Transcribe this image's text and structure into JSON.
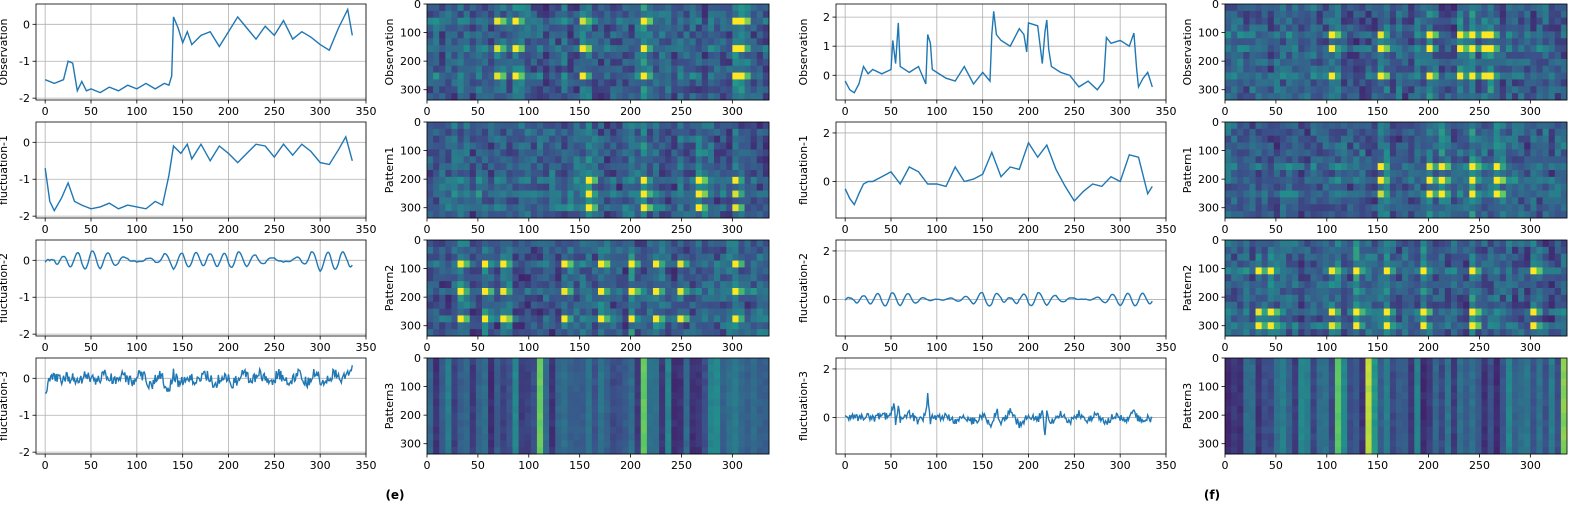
{
  "panel_labels": [
    "(e)",
    "(f)"
  ],
  "colors": {
    "line": "#1f77b4",
    "grid": "#b0b0b0",
    "axis": "#000000",
    "colormap": "viridis"
  },
  "chart_data": [
    {
      "type": "line",
      "ylabel": "Observation",
      "xlim": [
        -10,
        350
      ],
      "ylim": [
        -2.05,
        0.55
      ],
      "xticks": [
        0,
        50,
        100,
        150,
        200,
        250,
        300,
        350
      ],
      "yticks": [
        -2,
        -1,
        0
      ],
      "x": [
        0,
        10,
        20,
        25,
        30,
        35,
        40,
        45,
        50,
        60,
        70,
        80,
        90,
        100,
        110,
        120,
        130,
        135,
        138,
        140,
        145,
        150,
        155,
        160,
        170,
        180,
        190,
        200,
        210,
        220,
        230,
        240,
        250,
        260,
        270,
        280,
        290,
        300,
        310,
        320,
        330,
        335
      ],
      "y": [
        -1.5,
        -1.6,
        -1.5,
        -1.0,
        -1.05,
        -1.8,
        -1.55,
        -1.8,
        -1.75,
        -1.85,
        -1.7,
        -1.8,
        -1.65,
        -1.75,
        -1.6,
        -1.75,
        -1.6,
        -1.65,
        -1.4,
        0.2,
        -0.1,
        -0.5,
        -0.2,
        -0.55,
        -0.3,
        -0.2,
        -0.6,
        -0.2,
        0.2,
        -0.1,
        -0.4,
        -0.05,
        -0.3,
        0.1,
        -0.4,
        -0.2,
        -0.35,
        -0.55,
        -0.7,
        -0.1,
        0.4,
        -0.3
      ]
    },
    {
      "type": "heatmap",
      "ylabel": "Observation",
      "xlim": [
        0,
        336
      ],
      "ylim": [
        336,
        0
      ],
      "xticks": [
        0,
        50,
        100,
        150,
        200,
        250,
        300
      ],
      "yticks": [
        0,
        100,
        200,
        300
      ],
      "bright_columns": [
        70,
        85,
        155,
        215,
        300,
        310
      ],
      "bright_rows": [
        60,
        150,
        240
      ]
    },
    {
      "type": "line",
      "ylabel": "fluctuation-1",
      "xlim": [
        -10,
        350
      ],
      "ylim": [
        -2.05,
        0.55
      ],
      "xticks": [
        0,
        50,
        100,
        150,
        200,
        250,
        300,
        350
      ],
      "yticks": [
        -2,
        -1,
        0
      ],
      "x": [
        0,
        5,
        10,
        18,
        25,
        32,
        40,
        50,
        60,
        70,
        80,
        90,
        100,
        110,
        120,
        128,
        135,
        140,
        148,
        155,
        160,
        170,
        180,
        190,
        200,
        210,
        220,
        230,
        240,
        250,
        260,
        270,
        280,
        290,
        300,
        310,
        320,
        328,
        335
      ],
      "y": [
        -0.7,
        -1.6,
        -1.85,
        -1.5,
        -1.1,
        -1.6,
        -1.7,
        -1.8,
        -1.75,
        -1.65,
        -1.8,
        -1.7,
        -1.75,
        -1.8,
        -1.6,
        -1.7,
        -0.9,
        -0.1,
        -0.3,
        -0.05,
        -0.45,
        -0.05,
        -0.5,
        -0.1,
        -0.3,
        -0.55,
        -0.3,
        -0.05,
        -0.1,
        -0.4,
        -0.05,
        -0.35,
        -0.05,
        -0.25,
        -0.55,
        -0.6,
        -0.2,
        0.15,
        -0.5
      ]
    },
    {
      "type": "heatmap",
      "ylabel": "Pattern1",
      "xlim": [
        0,
        336
      ],
      "ylim": [
        336,
        0
      ],
      "xticks": [
        0,
        50,
        100,
        150,
        200,
        250,
        300
      ],
      "yticks": [
        0,
        100,
        200,
        300
      ],
      "bright_columns": [
        160,
        210,
        265,
        300
      ],
      "bright_rows": [
        200,
        260,
        300
      ]
    },
    {
      "type": "line",
      "ylabel": "fluctuation-2",
      "xlim": [
        -10,
        350
      ],
      "ylim": [
        -2.05,
        0.55
      ],
      "xticks": [
        0,
        50,
        100,
        150,
        200,
        250,
        300,
        350
      ],
      "yticks": [
        -2,
        -1,
        0
      ],
      "pattern": {
        "kind": "oscillation",
        "center": 0.0,
        "amplitude": 0.22,
        "period": 16
      },
      "x": [
        0,
        5,
        10,
        20,
        30,
        40,
        50,
        60,
        70,
        80,
        90,
        100,
        110,
        120,
        130,
        140,
        150,
        160,
        170,
        180,
        190,
        200,
        210,
        220,
        230,
        240,
        250,
        260,
        270,
        280,
        290,
        300,
        310,
        320,
        330,
        335
      ],
      "y": [
        -0.1,
        -0.3,
        0.25,
        -0.2,
        0.15,
        -0.15,
        0.15,
        -0.1,
        0.15,
        -0.15,
        0.2,
        -0.2,
        0.15,
        -0.1,
        0.25,
        -0.25,
        0.15,
        -0.1,
        0.2,
        -0.1,
        0.15,
        -0.15,
        0.2,
        -0.1,
        0.15,
        -0.15,
        0.2,
        -0.2,
        0.15,
        -0.1,
        0.25,
        -0.25,
        0.1,
        -0.15,
        0.25,
        -0.1
      ]
    },
    {
      "type": "heatmap",
      "ylabel": "Pattern2",
      "xlim": [
        0,
        336
      ],
      "ylim": [
        336,
        0
      ],
      "xticks": [
        0,
        50,
        100,
        150,
        200,
        250,
        300
      ],
      "yticks": [
        0,
        100,
        200,
        300
      ],
      "bright_columns": [
        35,
        55,
        75,
        135,
        170,
        200,
        225,
        250,
        300
      ],
      "bright_rows": [
        80,
        170,
        270
      ]
    },
    {
      "type": "line",
      "ylabel": "fluctuation-3",
      "xlim": [
        -10,
        350
      ],
      "ylim": [
        -2.05,
        0.55
      ],
      "xticks": [
        0,
        50,
        100,
        150,
        200,
        250,
        300,
        350
      ],
      "yticks": [
        -2,
        -1,
        0
      ],
      "pattern": {
        "kind": "noise",
        "center": 0.0,
        "amplitude": 0.2
      },
      "x": [
        0,
        3,
        8,
        15,
        25,
        35,
        45,
        55,
        65,
        75,
        85,
        95,
        105,
        115,
        125,
        135,
        140,
        145,
        155,
        165,
        175,
        185,
        195,
        205,
        215,
        225,
        235,
        245,
        255,
        265,
        275,
        285,
        295,
        305,
        315,
        325,
        330,
        335
      ],
      "y": [
        -0.65,
        -0.3,
        0.1,
        -0.05,
        0.05,
        -0.1,
        0.1,
        -0.15,
        0.15,
        -0.1,
        0.1,
        -0.2,
        0.2,
        -0.3,
        0.1,
        -0.45,
        0.2,
        -0.2,
        0.1,
        -0.2,
        0.2,
        -0.25,
        0.15,
        -0.3,
        0.25,
        -0.15,
        0.2,
        -0.25,
        0.2,
        -0.3,
        0.2,
        -0.2,
        0.25,
        -0.3,
        0.2,
        -0.1,
        0.3,
        0.35
      ]
    },
    {
      "type": "heatmap",
      "ylabel": "Pattern3",
      "xlim": [
        0,
        336
      ],
      "ylim": [
        336,
        0
      ],
      "xticks": [
        0,
        50,
        100,
        150,
        200,
        250,
        300
      ],
      "yticks": [
        0,
        100,
        200,
        300
      ],
      "orientation": "columns",
      "bright_columns": [
        108,
        112,
        212,
        215
      ]
    },
    {
      "type": "line",
      "ylabel": "Observation",
      "xlim": [
        -10,
        350
      ],
      "ylim": [
        -0.85,
        2.45
      ],
      "xticks": [
        0,
        50,
        100,
        150,
        200,
        250,
        300,
        350
      ],
      "yticks": [
        0,
        1,
        2
      ],
      "x": [
        0,
        5,
        10,
        15,
        20,
        25,
        30,
        40,
        50,
        52,
        55,
        58,
        60,
        70,
        80,
        88,
        90,
        93,
        95,
        100,
        110,
        120,
        130,
        140,
        150,
        158,
        160,
        162,
        165,
        170,
        180,
        190,
        195,
        198,
        200,
        210,
        215,
        218,
        220,
        222,
        225,
        235,
        245,
        255,
        265,
        275,
        282,
        285,
        290,
        300,
        310,
        315,
        318,
        320,
        325,
        330,
        335
      ],
      "y": [
        -0.2,
        -0.5,
        -0.6,
        -0.3,
        0.3,
        0.05,
        0.2,
        0.05,
        0.2,
        1.2,
        0.4,
        1.8,
        0.3,
        0.1,
        0.3,
        -0.3,
        1.4,
        1.1,
        0.2,
        0.1,
        -0.1,
        -0.2,
        0.3,
        -0.3,
        0.1,
        -0.2,
        1.4,
        2.2,
        1.4,
        1.2,
        1.0,
        1.6,
        1.4,
        0.8,
        1.8,
        1.7,
        0.4,
        1.5,
        1.9,
        0.9,
        0.3,
        0.1,
        0.0,
        -0.4,
        -0.2,
        -0.5,
        -0.2,
        1.3,
        1.1,
        1.2,
        1.0,
        1.45,
        0.2,
        -0.4,
        -0.1,
        0.1,
        -0.4
      ]
    },
    {
      "type": "heatmap",
      "ylabel": "Observation",
      "xlim": [
        0,
        336
      ],
      "ylim": [
        336,
        0
      ],
      "xticks": [
        0,
        50,
        100,
        150,
        200,
        250,
        300
      ],
      "yticks": [
        0,
        100,
        200,
        300
      ],
      "bright_columns": [
        105,
        155,
        200,
        230,
        245,
        255,
        260
      ],
      "bright_rows": [
        100,
        160,
        250
      ]
    },
    {
      "type": "line",
      "ylabel": "fluctuation-1",
      "xlim": [
        -10,
        350
      ],
      "ylim": [
        -1.5,
        2.45
      ],
      "xticks": [
        0,
        50,
        100,
        150,
        200,
        250,
        300,
        350
      ],
      "yticks": [
        0,
        2
      ],
      "x": [
        0,
        5,
        10,
        15,
        20,
        25,
        30,
        40,
        50,
        60,
        70,
        80,
        90,
        100,
        110,
        120,
        130,
        140,
        150,
        160,
        170,
        180,
        190,
        200,
        210,
        220,
        230,
        240,
        250,
        260,
        270,
        280,
        290,
        300,
        310,
        320,
        330,
        335
      ],
      "y": [
        -0.3,
        -0.7,
        -0.95,
        -0.5,
        -0.1,
        0.0,
        0.0,
        0.2,
        0.4,
        -0.1,
        0.6,
        0.4,
        -0.1,
        -0.1,
        -0.2,
        0.6,
        0.0,
        0.1,
        0.3,
        1.2,
        0.2,
        0.6,
        0.5,
        1.6,
        1.0,
        1.5,
        0.5,
        -0.2,
        -0.8,
        -0.4,
        -0.1,
        -0.2,
        0.2,
        0.0,
        1.1,
        1.0,
        -0.5,
        -0.2
      ]
    },
    {
      "type": "heatmap",
      "ylabel": "Pattern1",
      "xlim": [
        0,
        336
      ],
      "ylim": [
        336,
        0
      ],
      "xticks": [
        0,
        50,
        100,
        150,
        200,
        250,
        300
      ],
      "yticks": [
        0,
        100,
        200,
        300
      ],
      "bright_columns": [
        150,
        200,
        210,
        240,
        265
      ],
      "bright_rows": [
        160,
        210,
        260
      ]
    },
    {
      "type": "line",
      "ylabel": "fluctuation-2",
      "xlim": [
        -10,
        350
      ],
      "ylim": [
        -1.5,
        2.45
      ],
      "xticks": [
        0,
        50,
        100,
        150,
        200,
        250,
        300,
        350
      ],
      "yticks": [
        0,
        2
      ],
      "pattern": {
        "kind": "oscillation",
        "center": 0.0,
        "amplitude": 0.25,
        "period": 16
      },
      "x": [
        0,
        5,
        10,
        20,
        30,
        40,
        50,
        60,
        70,
        80,
        90,
        100,
        110,
        120,
        130,
        140,
        150,
        160,
        170,
        180,
        190,
        200,
        210,
        220,
        230,
        240,
        250,
        260,
        270,
        280,
        290,
        300,
        310,
        320,
        330,
        335
      ],
      "y": [
        -0.05,
        -0.2,
        0.2,
        -0.15,
        0.2,
        -0.15,
        0.15,
        -0.1,
        0.2,
        -0.15,
        0.1,
        -0.1,
        0.1,
        -0.05,
        0.1,
        -0.1,
        0.3,
        -0.35,
        0.5,
        -0.4,
        0.35,
        -0.3,
        0.3,
        -0.2,
        0.2,
        -0.15,
        0.2,
        -0.1,
        0.15,
        -0.1,
        0.15,
        -0.1,
        0.1,
        -0.1,
        0.2,
        0.05
      ]
    },
    {
      "type": "heatmap",
      "ylabel": "Pattern2",
      "xlim": [
        0,
        336
      ],
      "ylim": [
        336,
        0
      ],
      "xticks": [
        0,
        50,
        100,
        150,
        200,
        250,
        300
      ],
      "yticks": [
        0,
        100,
        200,
        300
      ],
      "bright_columns": [
        30,
        45,
        105,
        130,
        160,
        195,
        240,
        305
      ],
      "bright_rows": [
        100,
        240,
        300
      ]
    },
    {
      "type": "line",
      "ylabel": "fluctuation-3",
      "xlim": [
        -10,
        350
      ],
      "ylim": [
        -1.5,
        2.45
      ],
      "xticks": [
        0,
        50,
        100,
        150,
        200,
        250,
        300,
        350
      ],
      "yticks": [
        0,
        2
      ],
      "pattern": {
        "kind": "noise",
        "center": 0.0,
        "amplitude": 0.2
      },
      "x": [
        0,
        5,
        10,
        20,
        30,
        40,
        50,
        53,
        55,
        58,
        60,
        70,
        80,
        88,
        90,
        93,
        95,
        100,
        110,
        120,
        130,
        140,
        150,
        160,
        165,
        170,
        180,
        190,
        200,
        210,
        215,
        218,
        220,
        225,
        235,
        245,
        255,
        265,
        275,
        285,
        295,
        305,
        315,
        325,
        330,
        335
      ],
      "y": [
        0.0,
        0.05,
        -0.05,
        0.1,
        -0.1,
        0.15,
        0.0,
        1.2,
        -0.4,
        0.6,
        -0.2,
        0.3,
        -0.3,
        0.2,
        1.6,
        -0.3,
        0.1,
        -0.1,
        0.2,
        -0.2,
        0.1,
        -0.3,
        0.2,
        -0.5,
        0.5,
        -0.3,
        0.4,
        -0.5,
        0.2,
        -0.2,
        0.4,
        -1.1,
        0.3,
        -0.3,
        0.2,
        -0.4,
        0.3,
        -0.2,
        0.2,
        -0.3,
        0.2,
        -0.2,
        0.3,
        -0.4,
        0.1,
        -0.2
      ]
    },
    {
      "type": "heatmap",
      "ylabel": "Pattern3",
      "xlim": [
        0,
        336
      ],
      "ylim": [
        336,
        0
      ],
      "xticks": [
        0,
        50,
        100,
        150,
        200,
        250,
        300
      ],
      "yticks": [
        0,
        100,
        200,
        300
      ],
      "orientation": "columns",
      "bright_columns": [
        112,
        140,
        330
      ]
    }
  ]
}
